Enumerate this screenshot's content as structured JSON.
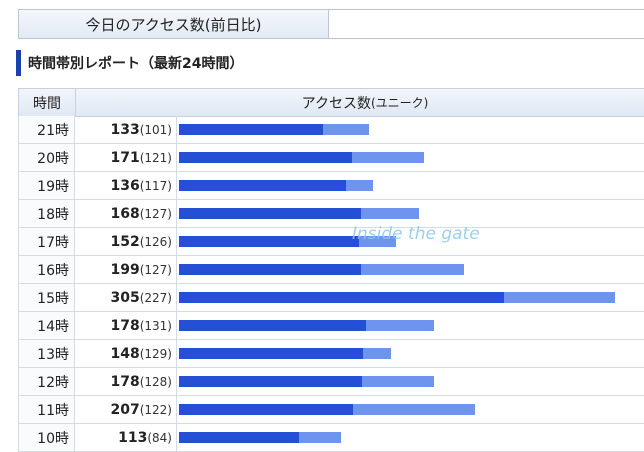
{
  "summary": {
    "label": "今日のアクセス数(前日比)"
  },
  "section_title": "時間帯別レポート（最新24時間）",
  "table": {
    "header": {
      "hour": "時間",
      "access": "アクセス数",
      "unique_note": "(ユニーク)"
    },
    "colors": {
      "total": "#6f94f0",
      "unique": "#2550d6"
    },
    "rows": [
      {
        "hour": "21時",
        "total": 133,
        "unique": 101,
        "unique_label": "(101)"
      },
      {
        "hour": "20時",
        "total": 171,
        "unique": 121,
        "unique_label": "(121)"
      },
      {
        "hour": "19時",
        "total": 136,
        "unique": 117,
        "unique_label": "(117)"
      },
      {
        "hour": "18時",
        "total": 168,
        "unique": 127,
        "unique_label": "(127)"
      },
      {
        "hour": "17時",
        "total": 152,
        "unique": 126,
        "unique_label": "(126)"
      },
      {
        "hour": "16時",
        "total": 199,
        "unique": 127,
        "unique_label": "(127)"
      },
      {
        "hour": "15時",
        "total": 305,
        "unique": 227,
        "unique_label": "(227)"
      },
      {
        "hour": "14時",
        "total": 178,
        "unique": 131,
        "unique_label": "(131)"
      },
      {
        "hour": "13時",
        "total": 148,
        "unique": 129,
        "unique_label": "(129)"
      },
      {
        "hour": "12時",
        "total": 178,
        "unique": 128,
        "unique_label": "(128)"
      },
      {
        "hour": "11時",
        "total": 207,
        "unique": 122,
        "unique_label": "(122)"
      },
      {
        "hour": "10時",
        "total": 113,
        "unique": 84,
        "unique_label": "(84)"
      }
    ]
  },
  "watermark": "Inside the gate"
}
